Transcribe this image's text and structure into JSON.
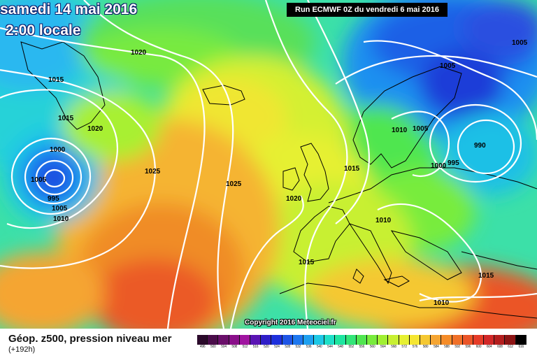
{
  "map": {
    "date": "samedi 14 mai 2016",
    "time": "2:00 locale",
    "run": "Run ECMWF 0Z du vendredi 6 mai 2016",
    "copyright": "Copyright 2016 Meteociel.fr",
    "title": "Géop. z500, pression niveau mer",
    "subtitle": "(+192h)"
  },
  "legend": {
    "values": [
      "496",
      "500",
      "504",
      "508",
      "512",
      "516",
      "520",
      "524",
      "528",
      "532",
      "536",
      "540",
      "544",
      "548",
      "552",
      "556",
      "560",
      "564",
      "568",
      "572",
      "576",
      "580",
      "584",
      "588",
      "592",
      "596",
      "600",
      "604",
      "608",
      "612",
      "616"
    ],
    "colors": [
      "#2b0a2b",
      "#4a0d4a",
      "#6a0f6a",
      "#8a0f8a",
      "#a014a0",
      "#5a14b4",
      "#2f1ec8",
      "#1e30dc",
      "#1e55e6",
      "#1e78f0",
      "#1ea0f0",
      "#1ec8e6",
      "#1ee0c8",
      "#1ee6a0",
      "#32e678",
      "#50e650",
      "#78ec3c",
      "#a0f032",
      "#c8f032",
      "#e6f032",
      "#f5e632",
      "#f5c832",
      "#f5a532",
      "#f58c28",
      "#f07028",
      "#eb5528",
      "#e63c28",
      "#d22828",
      "#b41e1e",
      "#8c1414",
      "#000000"
    ]
  },
  "isobar_labels": [
    "1020",
    "1015",
    "1015",
    "1020",
    "1000",
    "995",
    "1005",
    "1010",
    "1005",
    "1025",
    "1025",
    "1020",
    "1015",
    "1005",
    "1010",
    "1005",
    "1000",
    "995",
    "990",
    "1010",
    "1015",
    "1015",
    "1010",
    "1005"
  ],
  "colors": {
    "isobar": "#ffffff",
    "coastline": "#000000",
    "date_outline": "#0a1a6a"
  }
}
